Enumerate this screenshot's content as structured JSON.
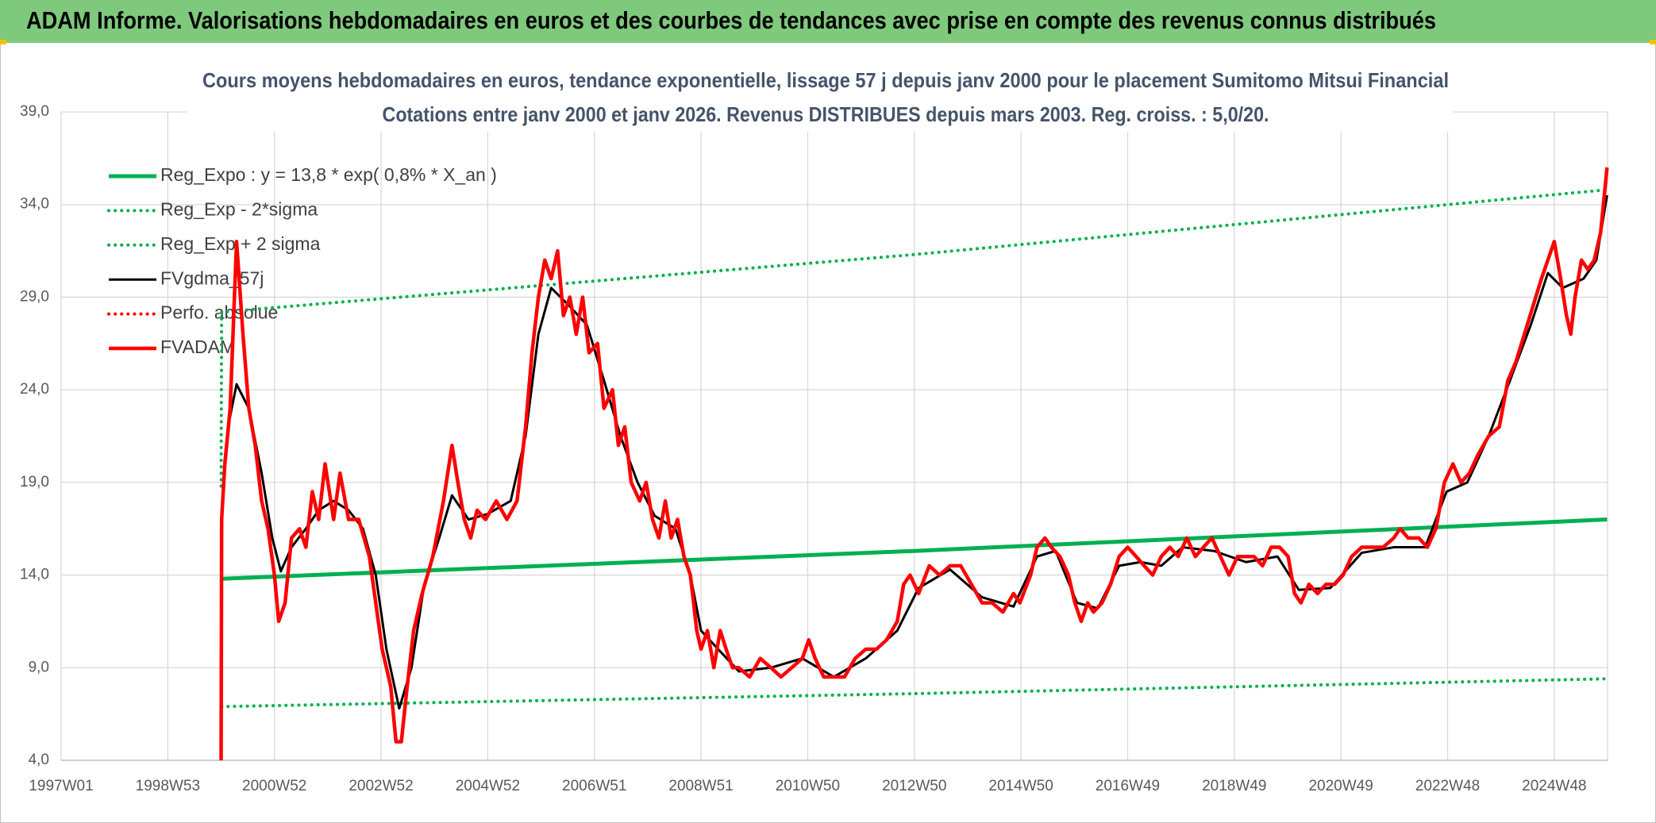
{
  "chart_data": {
    "type": "line",
    "header": "ADAM Informe. Valorisations hebdomadaires en euros et des courbes de tendances avec prise en compte des revenus connus distribués",
    "title": "Cours moyens hebdomadaires en euros, tendance exponentielle, lissage 57 j depuis janv 2000 pour le placement Sumitomo Mitsui Financial",
    "subtitle": "Cotations entre janv 2000 et janv 2026. Revenus DISTRIBUES depuis mars 2003. Reg. croiss. : 5,0/20.",
    "xlim": [
      1997,
      2026
    ],
    "xticks": [
      {
        "value": 1997,
        "label": "1997W01"
      },
      {
        "value": 1999,
        "label": "1998W53"
      },
      {
        "value": 2001,
        "label": "2000W52"
      },
      {
        "value": 2003,
        "label": "2002W52"
      },
      {
        "value": 2005,
        "label": "2004W52"
      },
      {
        "value": 2007,
        "label": "2006W51"
      },
      {
        "value": 2009,
        "label": "2008W51"
      },
      {
        "value": 2011,
        "label": "2010W50"
      },
      {
        "value": 2013,
        "label": "2012W50"
      },
      {
        "value": 2015,
        "label": "2014W50"
      },
      {
        "value": 2017,
        "label": "2016W49"
      },
      {
        "value": 2019,
        "label": "2018W49"
      },
      {
        "value": 2021,
        "label": "2020W49"
      },
      {
        "value": 2023,
        "label": "2022W48"
      },
      {
        "value": 2025,
        "label": "2024W48"
      }
    ],
    "ylim": [
      4,
      39
    ],
    "yticks": [
      {
        "value": 4,
        "label": "4,0"
      },
      {
        "value": 9,
        "label": "9,0"
      },
      {
        "value": 14,
        "label": "14,0"
      },
      {
        "value": 19,
        "label": "19,0"
      },
      {
        "value": 24,
        "label": "24,0"
      },
      {
        "value": 29,
        "label": "29,0"
      },
      {
        "value": 34,
        "label": "34,0"
      },
      {
        "value": 39,
        "label": "39,0"
      }
    ],
    "grid": true,
    "legend": "upper left",
    "series": [
      {
        "name": "Reg_Expo : y = 13,8 * exp( 0,8% *  X_an )",
        "color": "#00b050",
        "dash": "solid",
        "x": [
          2000.01,
          2013,
          2025.99
        ],
        "values": [
          13.8,
          15.3,
          17.0
        ]
      },
      {
        "name": "Reg_Exp - 2*sigma",
        "color": "#00b050",
        "dash": "dotted",
        "x": [
          2000.01,
          2013,
          2025.99
        ],
        "values": [
          6.9,
          7.6,
          8.4
        ]
      },
      {
        "name": "Reg_Exp + 2 sigma",
        "color": "#00b050",
        "dash": "dotted",
        "x": [
          2000.0,
          2000.01,
          2013,
          2025.99
        ],
        "values": [
          18.8,
          28.2,
          31.3,
          34.8
        ]
      },
      {
        "name": "FVgdma_57j",
        "color": "#000000",
        "dash": "solid",
        "x": [
          2000.01,
          2000.13,
          2000.29,
          2000.52,
          2000.76,
          2000.96,
          2001.12,
          2001.32,
          2001.59,
          2001.83,
          2002.11,
          2002.39,
          2002.66,
          2002.9,
          2003.1,
          2003.34,
          2003.57,
          2003.81,
          2004.09,
          2004.33,
          2004.64,
          2005.0,
          2005.43,
          2005.71,
          2005.95,
          2006.19,
          2006.54,
          2006.86,
          2007.18,
          2007.49,
          2007.81,
          2008.13,
          2008.52,
          2008.8,
          2009.0,
          2009.32,
          2009.71,
          2010.31,
          2010.9,
          2011.49,
          2012.09,
          2012.68,
          2013.08,
          2013.67,
          2014.27,
          2014.86,
          2015.3,
          2015.65,
          2016.05,
          2016.44,
          2016.84,
          2017.24,
          2017.63,
          2018.03,
          2018.62,
          2019.22,
          2019.81,
          2020.21,
          2020.8,
          2021.39,
          2021.99,
          2022.58,
          2022.98,
          2023.37,
          2023.77,
          2024.17,
          2024.56,
          2024.88,
          2025.16,
          2025.55,
          2025.79,
          2025.99
        ],
        "values": [
          17.5,
          22,
          24.3,
          23,
          19.5,
          16,
          14.2,
          15.5,
          16.5,
          17.5,
          18,
          17.5,
          16.5,
          14,
          10,
          6.8,
          9,
          13.5,
          16,
          18.3,
          17,
          17.3,
          18,
          21.5,
          27,
          29.5,
          28.5,
          27.5,
          24.5,
          21.5,
          19,
          17.2,
          16.5,
          14,
          11,
          10,
          8.8,
          9,
          9.5,
          8.5,
          9.5,
          11,
          13.3,
          14.3,
          12.8,
          12.3,
          15,
          15.3,
          12.5,
          12.2,
          14.5,
          14.7,
          14.5,
          15.5,
          15.3,
          14.7,
          15,
          13.2,
          13.3,
          15.2,
          15.5,
          15.5,
          18.5,
          19,
          21.5,
          24.5,
          27.5,
          30.3,
          29.5,
          30,
          31,
          34.5
        ]
      },
      {
        "name": "Perfo. absolue",
        "color": "#ff0000",
        "dash": "dotted",
        "x": [],
        "values": []
      },
      {
        "name": "FVADAM",
        "color": "#ff0000",
        "dash": "solid",
        "x": [
          2000.0,
          2000.01,
          2000.07,
          2000.17,
          2000.29,
          2000.41,
          2000.52,
          2000.64,
          2000.76,
          2000.88,
          2001.0,
          2001.08,
          2001.2,
          2001.32,
          2001.47,
          2001.59,
          2001.71,
          2001.83,
          2001.95,
          2002.11,
          2002.23,
          2002.39,
          2002.58,
          2002.78,
          2002.9,
          2003.02,
          2003.18,
          2003.28,
          2003.38,
          2003.49,
          2003.61,
          2003.77,
          2003.97,
          2004.17,
          2004.33,
          2004.44,
          2004.56,
          2004.68,
          2004.8,
          2004.96,
          2005.16,
          2005.36,
          2005.55,
          2005.71,
          2005.83,
          2005.95,
          2006.07,
          2006.19,
          2006.31,
          2006.42,
          2006.54,
          2006.66,
          2006.78,
          2006.9,
          2007.06,
          2007.18,
          2007.34,
          2007.45,
          2007.57,
          2007.69,
          2007.85,
          2007.97,
          2008.09,
          2008.21,
          2008.33,
          2008.44,
          2008.56,
          2008.68,
          2008.8,
          2008.92,
          2009.0,
          2009.12,
          2009.24,
          2009.36,
          2009.47,
          2009.59,
          2009.71,
          2009.91,
          2010.11,
          2010.31,
          2010.5,
          2010.7,
          2010.9,
          2011.02,
          2011.14,
          2011.3,
          2011.49,
          2011.69,
          2011.89,
          2012.09,
          2012.29,
          2012.48,
          2012.68,
          2012.8,
          2012.92,
          2013.08,
          2013.28,
          2013.47,
          2013.67,
          2013.87,
          2014.07,
          2014.27,
          2014.46,
          2014.66,
          2014.86,
          2014.98,
          2015.18,
          2015.3,
          2015.45,
          2015.57,
          2015.73,
          2015.89,
          2016.01,
          2016.13,
          2016.25,
          2016.36,
          2016.52,
          2016.68,
          2016.84,
          2017.0,
          2017.16,
          2017.31,
          2017.47,
          2017.63,
          2017.79,
          2017.95,
          2018.11,
          2018.27,
          2018.42,
          2018.58,
          2018.74,
          2018.9,
          2019.06,
          2019.22,
          2019.37,
          2019.53,
          2019.69,
          2019.85,
          2020.01,
          2020.13,
          2020.25,
          2020.4,
          2020.56,
          2020.72,
          2020.88,
          2021.04,
          2021.2,
          2021.39,
          2021.59,
          2021.79,
          2021.99,
          2022.11,
          2022.26,
          2022.46,
          2022.62,
          2022.78,
          2022.94,
          2023.1,
          2023.25,
          2023.41,
          2023.57,
          2023.77,
          2023.97,
          2024.13,
          2024.28,
          2024.44,
          2024.6,
          2024.76,
          2024.88,
          2025.0,
          2025.12,
          2025.23,
          2025.31,
          2025.39,
          2025.51,
          2025.63,
          2025.75,
          2025.87,
          2025.99
        ],
        "values": [
          4,
          17,
          20,
          23,
          32,
          27,
          23,
          21,
          18,
          16.5,
          14,
          11.5,
          12.5,
          16,
          16.5,
          15.5,
          18.5,
          17,
          20,
          17,
          19.5,
          17,
          17,
          15,
          12.5,
          10,
          8,
          5,
          5,
          8,
          11,
          13,
          15,
          18,
          21,
          19,
          17,
          16,
          17.5,
          17,
          18,
          17,
          18,
          22,
          26,
          29,
          31,
          30,
          31.5,
          28,
          29,
          27,
          29,
          26,
          26.5,
          23,
          24,
          21,
          22,
          19,
          18,
          19,
          17,
          16,
          18,
          16,
          17,
          15,
          14,
          11,
          10,
          11,
          9,
          11,
          10,
          9,
          9,
          8.5,
          9.5,
          9,
          8.5,
          9,
          9.5,
          10.5,
          9.5,
          8.5,
          8.5,
          8.5,
          9.5,
          10,
          10,
          10.5,
          11.5,
          13.5,
          14,
          13,
          14.5,
          14,
          14.5,
          14.5,
          13.5,
          12.5,
          12.5,
          12,
          13,
          12.5,
          14,
          15.5,
          16,
          15.5,
          15,
          14,
          12.5,
          11.5,
          12.5,
          12,
          12.5,
          13.5,
          15,
          15.5,
          15,
          14.5,
          14,
          15,
          15.5,
          15,
          16,
          15,
          15.5,
          16,
          15,
          14,
          15,
          15,
          15,
          14.5,
          15.5,
          15.5,
          15,
          13,
          12.5,
          13.5,
          13,
          13.5,
          13.5,
          14,
          15,
          15.5,
          15.5,
          15.5,
          16,
          16.5,
          16,
          16,
          15.5,
          16.5,
          19,
          20,
          19,
          19.5,
          20.5,
          21.5,
          22,
          24.5,
          25.5,
          27,
          28.5,
          30,
          31,
          32,
          30,
          28,
          27,
          29,
          31,
          30.5,
          31,
          32.5,
          36
        ]
      }
    ]
  }
}
